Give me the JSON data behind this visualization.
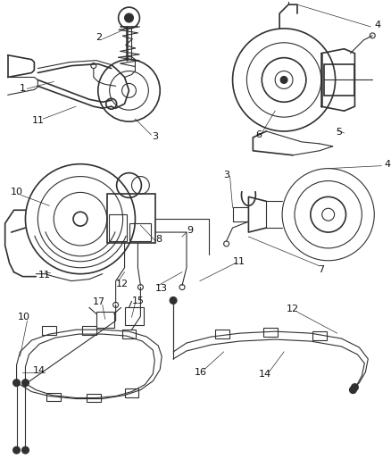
{
  "bg_color": "#ffffff",
  "line_color": "#303030",
  "label_color": "#111111",
  "fig_width": 4.38,
  "fig_height": 5.33,
  "dpi": 100
}
